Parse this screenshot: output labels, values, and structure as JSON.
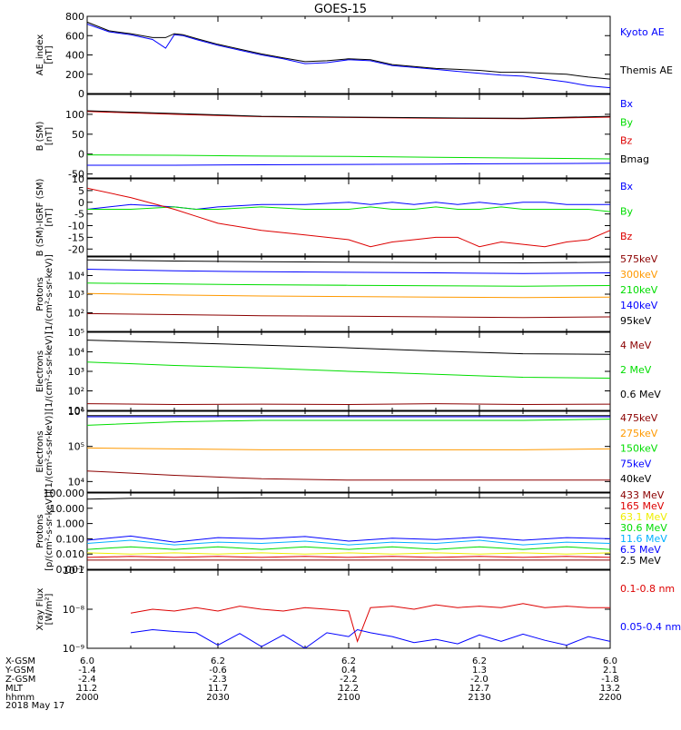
{
  "title": "GOES-15",
  "footer": {
    "row_labels": [
      "X-GSM",
      "Y-GSM",
      "Z-GSM",
      "MLT",
      "hhmm",
      "2018 May 17"
    ],
    "columns": [
      {
        "x_gsm": "6.0",
        "y_gsm": "-1.4",
        "z_gsm": "-2.4",
        "mlt": "11.2",
        "hhmm": "2000"
      },
      {
        "x_gsm": "6.2",
        "y_gsm": "-0.6",
        "z_gsm": "-2.3",
        "mlt": "11.7",
        "hhmm": "2030"
      },
      {
        "x_gsm": "6.2",
        "y_gsm": "0.4",
        "z_gsm": "-2.2",
        "mlt": "12.2",
        "hhmm": "2100"
      },
      {
        "x_gsm": "6.2",
        "y_gsm": "1.3",
        "z_gsm": "-2.0",
        "mlt": "12.7",
        "hhmm": "2130"
      },
      {
        "x_gsm": "6.0",
        "y_gsm": "2.1",
        "z_gsm": "-1.8",
        "mlt": "13.2",
        "hhmm": "2200"
      }
    ]
  },
  "colors": {
    "black": "#000000",
    "blue": "#0000ff",
    "green": "#00dd00",
    "red": "#dd0000",
    "darkred": "#8b0000",
    "orange": "#ff9900",
    "cyan": "#00b0ff",
    "yellow": "#eeee00",
    "purple": "#990099"
  },
  "chart_data": [
    {
      "type": "line",
      "ylabel": [
        "AE_index",
        "[nT]"
      ],
      "scale": "linear",
      "ylim": [
        0,
        800
      ],
      "yticks": [
        {
          "v": 0,
          "label": "0"
        },
        {
          "v": 200,
          "label": "200"
        },
        {
          "v": 400,
          "label": "400"
        },
        {
          "v": 600,
          "label": "600"
        },
        {
          "v": 800,
          "label": "800"
        }
      ],
      "x": [
        0,
        5,
        10,
        15,
        18,
        20,
        22,
        25,
        30,
        35,
        40,
        45,
        50,
        55,
        60,
        65,
        70,
        75,
        80,
        85,
        90,
        95,
        100,
        105,
        110,
        115,
        120
      ],
      "series": [
        {
          "name": "Kyoto AE",
          "color": "#0000ff",
          "values": [
            720,
            640,
            610,
            560,
            470,
            610,
            600,
            560,
            500,
            450,
            400,
            360,
            310,
            320,
            350,
            340,
            290,
            270,
            250,
            230,
            210,
            190,
            180,
            150,
            120,
            80,
            60
          ]
        },
        {
          "name": "Themis AE",
          "color": "#000000",
          "values": [
            740,
            650,
            620,
            580,
            580,
            620,
            610,
            570,
            510,
            460,
            410,
            370,
            330,
            340,
            360,
            350,
            300,
            280,
            260,
            250,
            240,
            220,
            220,
            210,
            200,
            170,
            150
          ]
        }
      ]
    },
    {
      "type": "line",
      "ylabel": [
        "B (SM)",
        "[nT]"
      ],
      "scale": "linear",
      "ylim": [
        -60,
        150
      ],
      "yticks": [
        {
          "v": -50,
          "label": "-50"
        },
        {
          "v": 0,
          "label": "0"
        },
        {
          "v": 50,
          "label": "50"
        },
        {
          "v": 100,
          "label": "100"
        }
      ],
      "x": [
        0,
        20,
        40,
        60,
        80,
        100,
        120
      ],
      "series": [
        {
          "name": "Bx",
          "color": "#0000ff",
          "values": [
            -28,
            -28,
            -27,
            -26,
            -25,
            -24,
            -23
          ]
        },
        {
          "name": "By",
          "color": "#00dd00",
          "values": [
            -2,
            -3,
            -5,
            -6,
            -8,
            -10,
            -12
          ]
        },
        {
          "name": "Bz",
          "color": "#dd0000",
          "values": [
            107,
            100,
            94,
            92,
            90,
            89,
            93
          ]
        },
        {
          "name": "Bmag",
          "color": "#000000",
          "values": [
            109,
            102,
            95,
            93,
            91,
            90,
            95
          ]
        }
      ]
    },
    {
      "type": "line",
      "ylabel": [
        "B (SM)-IGRF (SM)",
        "[nT]"
      ],
      "scale": "linear",
      "ylim": [
        -23,
        10
      ],
      "yticks": [
        {
          "v": -20,
          "label": "-20"
        },
        {
          "v": -15,
          "label": "-15"
        },
        {
          "v": -10,
          "label": "-10"
        },
        {
          "v": -5,
          "label": "-5"
        },
        {
          "v": 0,
          "label": "0"
        },
        {
          "v": 5,
          "label": "5"
        },
        {
          "v": 10,
          "label": "10"
        }
      ],
      "x": [
        0,
        10,
        20,
        25,
        30,
        40,
        50,
        60,
        65,
        70,
        75,
        80,
        85,
        90,
        95,
        100,
        105,
        110,
        115,
        120
      ],
      "series": [
        {
          "name": "Bx",
          "color": "#0000ff",
          "values": [
            -3,
            -1,
            -2,
            -3,
            -2,
            -1,
            -1,
            0,
            -1,
            0,
            -1,
            0,
            -1,
            0,
            -1,
            0,
            0,
            -1,
            -1,
            -1
          ]
        },
        {
          "name": "By",
          "color": "#00dd00",
          "values": [
            -3,
            -3,
            -2,
            -3,
            -3,
            -2,
            -3,
            -3,
            -2,
            -3,
            -3,
            -2,
            -3,
            -3,
            -2,
            -3,
            -3,
            -3,
            -3,
            -4
          ]
        },
        {
          "name": "Bz",
          "color": "#dd0000",
          "values": [
            6,
            2,
            -3,
            -6,
            -9,
            -12,
            -14,
            -16,
            -19,
            -17,
            -16,
            -15,
            -15,
            -19,
            -17,
            -18,
            -19,
            -17,
            -16,
            -12
          ]
        }
      ]
    },
    {
      "type": "line",
      "ylabel": [
        "Protons",
        "[1/(cm²-s-sr-keV)]"
      ],
      "scale": "log",
      "ylim": [
        10,
        100000
      ],
      "yticks": [
        {
          "v": 100,
          "label": "10²"
        },
        {
          "v": 1000,
          "label": "10³"
        },
        {
          "v": 10000,
          "label": "10⁴"
        }
      ],
      "x": [
        0,
        20,
        40,
        60,
        80,
        100,
        120
      ],
      "series": [
        {
          "name": "575keV",
          "color": "#8b0000",
          "values": [
            90,
            80,
            70,
            65,
            60,
            55,
            60
          ]
        },
        {
          "name": "300keV",
          "color": "#ff9900",
          "values": [
            1100,
            900,
            800,
            750,
            700,
            650,
            700
          ]
        },
        {
          "name": "210keV",
          "color": "#00dd00",
          "values": [
            4000,
            3500,
            3200,
            3000,
            2800,
            2700,
            2900
          ]
        },
        {
          "name": "140keV",
          "color": "#0000ff",
          "values": [
            22000,
            18000,
            16000,
            15000,
            14000,
            13000,
            14000
          ]
        },
        {
          "name": "95keV",
          "color": "#000000",
          "values": [
            70000,
            60000,
            55000,
            52000,
            50000,
            48000,
            52000
          ]
        }
      ]
    },
    {
      "type": "line",
      "ylabel": [
        "Electrons",
        "[1/(cm²-s-sr-keV)]"
      ],
      "scale": "log",
      "ylim": [
        10,
        100000
      ],
      "yticks": [
        {
          "v": 10,
          "label": "10¹"
        },
        {
          "v": 100,
          "label": "10²"
        },
        {
          "v": 1000,
          "label": "10³"
        },
        {
          "v": 10000,
          "label": "10⁴"
        },
        {
          "v": 100000,
          "label": "10⁵"
        }
      ],
      "x": [
        0,
        20,
        40,
        60,
        80,
        100,
        120
      ],
      "series": [
        {
          "name": "4 MeV",
          "color": "#8b0000",
          "values": [
            22,
            20,
            21,
            20,
            22,
            20,
            21
          ]
        },
        {
          "name": "2 MeV",
          "color": "#00dd00",
          "values": [
            3000,
            2000,
            1500,
            1000,
            700,
            500,
            450
          ]
        },
        {
          "name": "0.6 MeV",
          "color": "#000000",
          "values": [
            40000,
            30000,
            22000,
            16000,
            11000,
            8000,
            7500
          ]
        }
      ]
    },
    {
      "type": "line",
      "ylabel": [
        "Electrons",
        "[1/(cm²-s-sr-keV)]"
      ],
      "scale": "log",
      "ylim": [
        5000,
        1000000
      ],
      "yticks": [
        {
          "v": 10000,
          "label": "10⁴"
        },
        {
          "v": 100000,
          "label": "10⁵"
        },
        {
          "v": 1000000,
          "label": "10⁶"
        }
      ],
      "x": [
        0,
        20,
        40,
        60,
        80,
        100,
        120
      ],
      "series": [
        {
          "name": "475keV",
          "color": "#8b0000",
          "values": [
            20000,
            15000,
            12000,
            11000,
            11000,
            11000,
            11000
          ]
        },
        {
          "name": "275keV",
          "color": "#ff9900",
          "values": [
            90000,
            85000,
            80000,
            80000,
            80000,
            80000,
            85000
          ]
        },
        {
          "name": "150keV",
          "color": "#00dd00",
          "values": [
            400000,
            500000,
            550000,
            550000,
            550000,
            550000,
            600000
          ]
        },
        {
          "name": "75keV",
          "color": "#0000ff",
          "values": [
            700000,
            700000,
            700000,
            700000,
            700000,
            700000,
            700000
          ]
        },
        {
          "name": "40keV",
          "color": "#000000",
          "values": [
            750000,
            750000,
            750000,
            750000,
            750000,
            750000,
            750000
          ]
        }
      ]
    },
    {
      "type": "line",
      "ylabel": [
        "Protons",
        "[p/(cm²-s-sr-keV)]"
      ],
      "scale": "log",
      "ylim": [
        0.001,
        100
      ],
      "yticks": [
        {
          "v": 0.001,
          "label": "0.001"
        },
        {
          "v": 0.01,
          "label": "0.010"
        },
        {
          "v": 0.1,
          "label": "0.100"
        },
        {
          "v": 1,
          "label": "1.000"
        },
        {
          "v": 10,
          "label": "10.000"
        },
        {
          "v": 100,
          "label": "100.000"
        }
      ],
      "x": [
        0,
        10,
        20,
        30,
        40,
        50,
        60,
        70,
        80,
        90,
        100,
        110,
        120
      ],
      "series": [
        {
          "name": "433 MeV",
          "color": "#8b0000",
          "values": [
            0.004,
            0.004,
            0.004,
            0.004,
            0.004,
            0.004,
            0.004,
            0.004,
            0.004,
            0.004,
            0.004,
            0.004,
            0.004
          ]
        },
        {
          "name": "165 MeV",
          "color": "#dd0000",
          "values": [
            0.006,
            0.007,
            0.006,
            0.007,
            0.006,
            0.007,
            0.006,
            0.007,
            0.006,
            0.007,
            0.006,
            0.007,
            0.006
          ]
        },
        {
          "name": "63.1 MeV",
          "color": "#eeee00",
          "values": [
            0.012,
            0.01,
            0.012,
            0.01,
            0.012,
            0.01,
            0.012,
            0.01,
            0.012,
            0.01,
            0.012,
            0.01,
            0.012
          ]
        },
        {
          "name": "30.6 MeV",
          "color": "#00dd00",
          "values": [
            0.02,
            0.03,
            0.02,
            0.03,
            0.02,
            0.03,
            0.02,
            0.03,
            0.02,
            0.03,
            0.02,
            0.03,
            0.02
          ]
        },
        {
          "name": "11.6 MeV",
          "color": "#00b0ff",
          "values": [
            0.05,
            0.08,
            0.04,
            0.06,
            0.05,
            0.07,
            0.04,
            0.06,
            0.05,
            0.08,
            0.04,
            0.06,
            0.05
          ]
        },
        {
          "name": "6.5 MeV",
          "color": "#0000ff",
          "values": [
            0.08,
            0.15,
            0.06,
            0.12,
            0.1,
            0.14,
            0.07,
            0.11,
            0.09,
            0.13,
            0.08,
            0.12,
            0.1
          ]
        },
        {
          "name": "2.5 MeV",
          "color": "#000000",
          "values": [
            40,
            45,
            45,
            45,
            48,
            48,
            48,
            48,
            50,
            50,
            50,
            50,
            50
          ]
        }
      ]
    },
    {
      "type": "line",
      "ylabel": [
        "Xray Flux",
        "[W/m²]"
      ],
      "scale": "log",
      "ylim": [
        1e-09,
        1e-07
      ],
      "yticks": [
        {
          "v": 1e-09,
          "label": "10⁻⁹"
        },
        {
          "v": 1e-08,
          "label": "10⁻⁸"
        },
        {
          "v": 1e-07,
          "label": "10⁻⁷"
        }
      ],
      "x": [
        10,
        15,
        20,
        25,
        30,
        35,
        40,
        45,
        50,
        55,
        60,
        62,
        65,
        70,
        75,
        80,
        85,
        90,
        95,
        100,
        105,
        110,
        115,
        120
      ],
      "series": [
        {
          "name": "0.1-0.8 nm",
          "color": "#dd0000",
          "values": [
            8e-09,
            1e-08,
            9e-09,
            1.1e-08,
            9e-09,
            1.2e-08,
            1e-08,
            9e-09,
            1.1e-08,
            1e-08,
            9e-09,
            1.5e-09,
            1.1e-08,
            1.2e-08,
            1e-08,
            1.3e-08,
            1.1e-08,
            1.2e-08,
            1.1e-08,
            1.4e-08,
            1.1e-08,
            1.2e-08,
            1.1e-08,
            1.1e-08
          ]
        },
        {
          "name": "0.05-0.4 nm",
          "color": "#0000ff",
          "values": [
            2.5e-09,
            3e-09,
            2.7e-09,
            2.5e-09,
            1.2e-09,
            2.4e-09,
            1.1e-09,
            2.2e-09,
            1e-09,
            2.5e-09,
            2e-09,
            3e-09,
            2.5e-09,
            2e-09,
            1.4e-09,
            1.7e-09,
            1.3e-09,
            2.2e-09,
            1.5e-09,
            2.3e-09,
            1.6e-09,
            1.2e-09,
            2e-09,
            1.5e-09
          ]
        }
      ]
    }
  ]
}
